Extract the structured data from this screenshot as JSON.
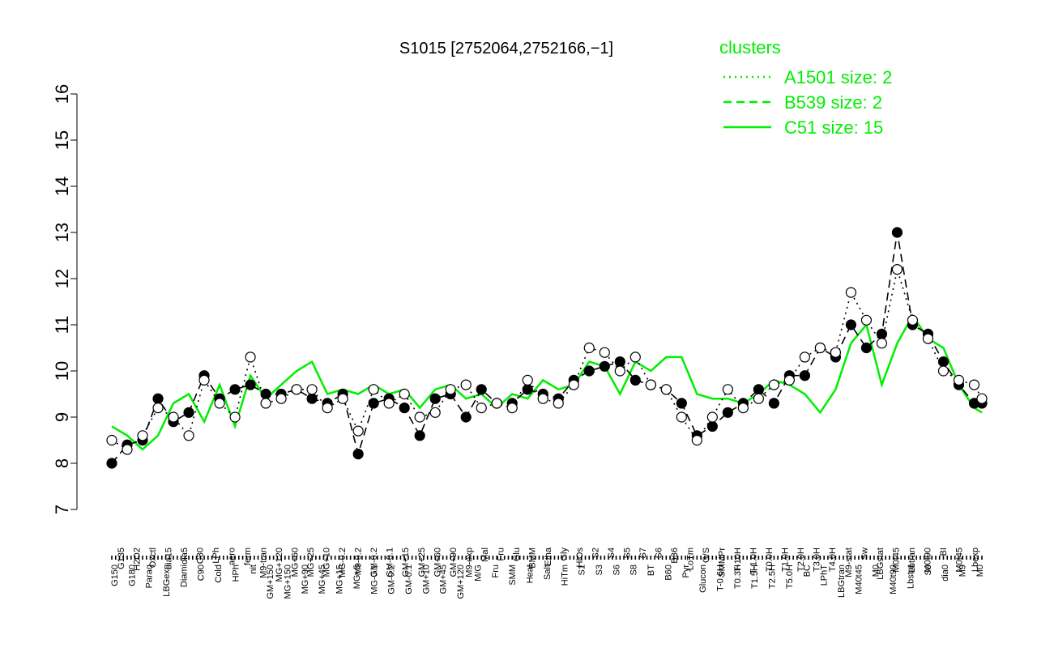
{
  "colors": {
    "line": "#00ee00",
    "axis": "#000000",
    "legend_title": "#00ee00",
    "legend_text": "#00ee00"
  },
  "chart_data": {
    "type": "line",
    "title": "S1015 [2752064,2752166,−1]",
    "ylim": [
      7,
      16
    ],
    "y_ticks": [
      "7",
      "8",
      "9",
      "10",
      "11",
      "12",
      "13",
      "14",
      "15",
      "16"
    ],
    "legend": {
      "title": "clusters",
      "placement": "top-right",
      "entries": [
        {
          "label": "A1501 size: 2",
          "style": "dotted"
        },
        {
          "label": "B539 size: 2",
          "style": "dashed"
        },
        {
          "label": "C51 size: 15",
          "style": "solid"
        }
      ]
    },
    "x_tick_labels_top": [
      "G135",
      "H2O2",
      "Oxctl",
      "dia15",
      "dia5",
      "C30",
      "LPh",
      "aero",
      "ferm",
      "M9-tran",
      "MG+120",
      "MG+60",
      "MG+25",
      "MG+10",
      "MG-0.2",
      "M9-0.2",
      "GM-0.2",
      "GM-0.1",
      "GM+15",
      "GM+25",
      "GM+60",
      "GM+90",
      "M9-exp",
      "Mal",
      "Fru",
      "Glu",
      "BMM",
      "Etha",
      "Gly",
      "HiOs",
      "S2",
      "S4",
      "S5",
      "S7",
      "S6",
      "B36",
      "LoTm",
      "G/S",
      "SMMPr",
      "T-10H",
      "T-1.0H",
      "T0.0H",
      "T1.0H",
      "T2.0H",
      "T3.0H",
      "T4.0H",
      "M9-stat",
      "Sw",
      "LBGstat",
      "M0t45",
      "Lbtran",
      "M0t90",
      "BI",
      "M0t45",
      "Lbexp"
    ],
    "x_tick_labels_bottom": [
      "G150",
      "G180",
      "Paraq",
      "LBGexp",
      "Diami",
      "C90",
      "Cold",
      "HPh",
      "nit",
      "GM+150",
      "MG+150",
      "MG+90",
      "MG+45",
      "MG+15",
      "MG+5",
      "MG-0.1",
      "GM-0.2",
      "GM-0.1",
      "GM+10",
      "GM+45",
      "GM+120",
      "M/G",
      "Fru",
      "SMM",
      "Heat",
      "Salt",
      "HiTm",
      "S1",
      "S3",
      "S6",
      "S8",
      "BT",
      "B60",
      "Pyr",
      "Glucon",
      "T-0.6H",
      "T0.3H",
      "T1.5H",
      "T2.5H",
      "T5.0H",
      "BC",
      "LPhT",
      "LBGtran",
      "M40t45",
      "M0",
      "M40t90",
      "Lbstat",
      "S0",
      "dia0",
      "M9",
      "M0"
    ],
    "x_index_max": 226,
    "series": [
      {
        "style": "solid",
        "x": [
          0,
          4,
          8,
          12,
          16,
          20,
          24,
          28,
          32,
          36,
          40,
          44,
          48,
          52,
          56,
          60,
          64,
          68,
          72,
          76,
          80,
          84,
          88,
          92,
          96,
          100,
          104,
          108,
          112,
          116,
          120,
          124,
          128,
          132,
          136,
          140,
          144,
          148,
          152,
          156,
          160,
          164,
          168,
          172,
          176,
          180,
          184,
          188,
          192,
          196,
          200,
          204,
          208,
          212,
          216,
          220,
          224,
          226
        ],
        "y": [
          8.8,
          8.6,
          8.3,
          8.6,
          9.3,
          9.5,
          8.9,
          9.7,
          8.8,
          9.9,
          9.4,
          9.7,
          10.0,
          10.2,
          9.5,
          9.6,
          9.5,
          9.7,
          9.5,
          9.6,
          9.2,
          9.6,
          9.7,
          9.4,
          9.5,
          9.2,
          9.5,
          9.4,
          9.8,
          9.6,
          9.7,
          10.2,
          10.1,
          9.5,
          10.2,
          10.0,
          10.3,
          10.3,
          9.5,
          9.4,
          9.4,
          9.3,
          9.5,
          9.8,
          9.7,
          9.5,
          9.1,
          9.6,
          10.6,
          11.0,
          9.7,
          10.6,
          11.2,
          10.7,
          10.5,
          9.7,
          9.2,
          9.1
        ]
      },
      {
        "style": "dashed",
        "x": [
          0,
          4,
          8,
          12,
          16,
          20,
          24,
          28,
          32,
          36,
          40,
          44,
          48,
          52,
          56,
          60,
          64,
          68,
          72,
          76,
          80,
          84,
          88,
          92,
          96,
          100,
          104,
          108,
          112,
          116,
          120,
          124,
          128,
          132,
          136,
          140,
          144,
          148,
          152,
          156,
          160,
          164,
          168,
          172,
          176,
          180,
          184,
          188,
          192,
          196,
          200,
          204,
          208,
          212,
          216,
          220,
          224,
          226
        ],
        "y": [
          8.0,
          8.4,
          8.5,
          9.4,
          8.9,
          9.1,
          9.9,
          9.4,
          9.6,
          9.7,
          9.5,
          9.5,
          9.6,
          9.4,
          9.3,
          9.5,
          8.2,
          9.3,
          9.4,
          9.2,
          8.6,
          9.4,
          9.5,
          9.0,
          9.6,
          9.3,
          9.3,
          9.6,
          9.5,
          9.4,
          9.8,
          10.0,
          10.1,
          10.2,
          9.8,
          9.7,
          9.6,
          9.3,
          8.6,
          8.8,
          9.1,
          9.3,
          9.6,
          9.3,
          9.9,
          9.9,
          10.5,
          10.3,
          11.0,
          10.5,
          10.8,
          13.0,
          11.0,
          10.8,
          10.2,
          9.7,
          9.3,
          9.3
        ]
      },
      {
        "style": "dotted",
        "x": [
          0,
          4,
          8,
          12,
          16,
          20,
          24,
          28,
          32,
          36,
          40,
          44,
          48,
          52,
          56,
          60,
          64,
          68,
          72,
          76,
          80,
          84,
          88,
          92,
          96,
          100,
          104,
          108,
          112,
          116,
          120,
          124,
          128,
          132,
          136,
          140,
          144,
          148,
          152,
          156,
          160,
          164,
          168,
          172,
          176,
          180,
          184,
          188,
          192,
          196,
          200,
          204,
          208,
          212,
          216,
          220,
          224,
          226
        ],
        "y": [
          8.5,
          8.3,
          8.6,
          9.2,
          9.0,
          8.6,
          9.8,
          9.3,
          9.0,
          10.3,
          9.3,
          9.4,
          9.6,
          9.6,
          9.2,
          9.4,
          8.7,
          9.6,
          9.3,
          9.5,
          9.0,
          9.1,
          9.6,
          9.7,
          9.2,
          9.3,
          9.2,
          9.8,
          9.4,
          9.3,
          9.7,
          10.5,
          10.4,
          10.0,
          10.3,
          9.7,
          9.6,
          9.0,
          8.5,
          9.0,
          9.6,
          9.2,
          9.4,
          9.7,
          9.8,
          10.3,
          10.5,
          10.4,
          11.7,
          11.1,
          10.6,
          12.2,
          11.1,
          10.7,
          10.0,
          9.8,
          9.7,
          9.4
        ]
      }
    ]
  }
}
